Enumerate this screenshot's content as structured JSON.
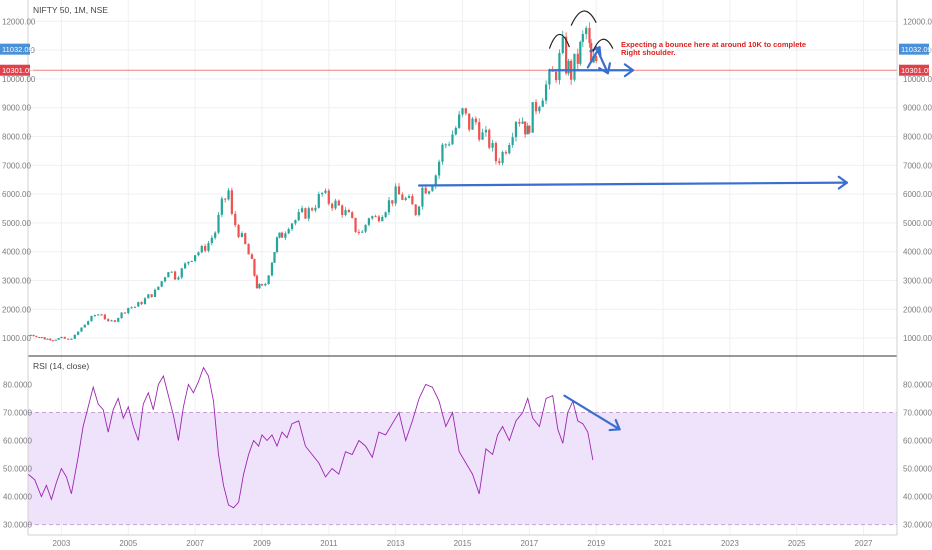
{
  "chart_data": [
    {
      "type": "candlestick",
      "title": "NIFTY 50, 1M, NSE",
      "ylim": [
        450,
        12600
      ],
      "xlim": [
        2002.0,
        2028.0
      ],
      "x_ticks": [
        "2003",
        "2005",
        "2007",
        "2009",
        "2011",
        "2013",
        "2015",
        "2017",
        "2019",
        "2021",
        "2023",
        "2025",
        "2027"
      ],
      "y_ticks": [
        "1000.00",
        "2000.00",
        "3000.00",
        "4000.00",
        "5000.00",
        "6000.00",
        "7000.00",
        "8000.00",
        "9000.00",
        "10000.00",
        "11000.00",
        "12000.00"
      ],
      "colors": {
        "up": "#26a69a",
        "down": "#ef5350",
        "support_line": "#f08080",
        "arrow": "#3a6fd0",
        "price_badge": "#4a90d9",
        "support_badge": "#e0404a"
      },
      "price_badges": [
        {
          "label": "11032.09",
          "value": 11032.09,
          "color": "#4a90d9"
        },
        {
          "label": "10301.05",
          "value": 10301.05,
          "color": "#e0404a"
        }
      ],
      "horizontal_line": {
        "value": 10301.05
      },
      "annotation": {
        "line1": "Expecting a bounce here at around 10K to complete",
        "line2": "Right shoulder."
      },
      "closes": [
        [
          2002.0,
          1130
        ],
        [
          2002.25,
          1080
        ],
        [
          2002.5,
          980
        ],
        [
          2002.75,
          960
        ],
        [
          2003.0,
          1000
        ],
        [
          2003.2,
          950
        ],
        [
          2003.4,
          1080
        ],
        [
          2003.6,
          1350
        ],
        [
          2003.8,
          1600
        ],
        [
          2004.0,
          1800
        ],
        [
          2004.2,
          1860
        ],
        [
          2004.4,
          1530
        ],
        [
          2004.6,
          1640
        ],
        [
          2004.8,
          1850
        ],
        [
          2005.0,
          2060
        ],
        [
          2005.2,
          2100
        ],
        [
          2005.4,
          2250
        ],
        [
          2005.6,
          2450
        ],
        [
          2005.8,
          2600
        ],
        [
          2006.0,
          2980
        ],
        [
          2006.2,
          3400
        ],
        [
          2006.4,
          3150
        ],
        [
          2006.6,
          3350
        ],
        [
          2006.8,
          3700
        ],
        [
          2007.0,
          3950
        ],
        [
          2007.2,
          4050
        ],
        [
          2007.4,
          4300
        ],
        [
          2007.6,
          4700
        ],
        [
          2007.8,
          5600
        ],
        [
          2008.0,
          6100
        ],
        [
          2008.1,
          5200
        ],
        [
          2008.3,
          4700
        ],
        [
          2008.5,
          4200
        ],
        [
          2008.7,
          3600
        ],
        [
          2008.85,
          2800
        ],
        [
          2009.0,
          2750
        ],
        [
          2009.1,
          2900
        ],
        [
          2009.3,
          3700
        ],
        [
          2009.45,
          4400
        ],
        [
          2009.6,
          4600
        ],
        [
          2009.8,
          5000
        ],
        [
          2010.0,
          5100
        ],
        [
          2010.2,
          5300
        ],
        [
          2010.4,
          5400
        ],
        [
          2010.6,
          5700
        ],
        [
          2010.8,
          6000
        ],
        [
          2011.0,
          5750
        ],
        [
          2011.2,
          5650
        ],
        [
          2011.4,
          5450
        ],
        [
          2011.6,
          5200
        ],
        [
          2011.8,
          4800
        ],
        [
          2012.0,
          4650
        ],
        [
          2012.2,
          5250
        ],
        [
          2012.4,
          5150
        ],
        [
          2012.6,
          5450
        ],
        [
          2012.8,
          5700
        ],
        [
          2013.0,
          6000
        ],
        [
          2013.2,
          5900
        ],
        [
          2013.4,
          5700
        ],
        [
          2013.6,
          5400
        ],
        [
          2013.8,
          6200
        ],
        [
          2014.0,
          6300
        ],
        [
          2014.2,
          6700
        ],
        [
          2014.4,
          7600
        ],
        [
          2014.6,
          7900
        ],
        [
          2014.8,
          8300
        ],
        [
          2015.0,
          8800
        ],
        [
          2015.2,
          8400
        ],
        [
          2015.4,
          8500
        ],
        [
          2015.6,
          8000
        ],
        [
          2015.8,
          7800
        ],
        [
          2016.0,
          7200
        ],
        [
          2016.2,
          7400
        ],
        [
          2016.4,
          8000
        ],
        [
          2016.6,
          8700
        ],
        [
          2016.8,
          8600
        ],
        [
          2016.95,
          8100
        ],
        [
          2017.0,
          8500
        ],
        [
          2017.2,
          9100
        ],
        [
          2017.4,
          9600
        ],
        [
          2017.6,
          9900
        ],
        [
          2017.8,
          10300
        ],
        [
          2018.0,
          11000
        ],
        [
          2018.1,
          10500
        ],
        [
          2018.25,
          10200
        ],
        [
          2018.45,
          10700
        ],
        [
          2018.6,
          11350
        ],
        [
          2018.7,
          11700
        ],
        [
          2018.8,
          11000
        ],
        [
          2018.85,
          10400
        ],
        [
          2019.0,
          10650
        ]
      ],
      "arrows": [
        {
          "from": [
            2013.7,
            6300
          ],
          "to": [
            2026.5,
            6400
          ]
        },
        {
          "from": [
            2017.6,
            10300
          ],
          "to": [
            2020.1,
            10300
          ]
        },
        {
          "from": [
            2018.75,
            10400
          ],
          "to": [
            2019.1,
            11100
          ]
        },
        {
          "from": [
            2019.0,
            11100
          ],
          "to": [
            2019.35,
            10200
          ]
        }
      ],
      "arcs": [
        {
          "from": [
            2017.6,
            11050
          ],
          "to": [
            2018.2,
            11100
          ],
          "peak": 11650
        },
        {
          "from": [
            2018.25,
            11850
          ],
          "to": [
            2019.0,
            11950
          ],
          "peak": 12450
        },
        {
          "from": [
            2018.9,
            10950
          ],
          "to": [
            2019.5,
            11050
          ],
          "peak": 11450
        }
      ]
    },
    {
      "type": "line",
      "title": "RSI (14, close)",
      "ylim": [
        27,
        88
      ],
      "y_ticks": [
        "30.0000",
        "40.0000",
        "50.0000",
        "60.0000",
        "70.0000",
        "80.0000"
      ],
      "band": [
        30,
        70
      ],
      "colors": {
        "line": "#9c27b0",
        "band": "#efe2fb",
        "band_border": "#c8a2d6"
      },
      "x": [
        2002.0,
        2002.2,
        2002.4,
        2002.55,
        2002.7,
        2002.85,
        2003.0,
        2003.15,
        2003.3,
        2003.5,
        2003.65,
        2003.8,
        2003.95,
        2004.1,
        2004.25,
        2004.4,
        2004.55,
        2004.7,
        2004.85,
        2005.0,
        2005.15,
        2005.3,
        2005.45,
        2005.6,
        2005.75,
        2005.9,
        2006.05,
        2006.2,
        2006.35,
        2006.5,
        2006.65,
        2006.8,
        2006.95,
        2007.1,
        2007.25,
        2007.4,
        2007.55,
        2007.7,
        2007.85,
        2008.0,
        2008.15,
        2008.3,
        2008.45,
        2008.6,
        2008.75,
        2008.9,
        2009.0,
        2009.15,
        2009.3,
        2009.45,
        2009.6,
        2009.75,
        2009.9,
        2010.1,
        2010.3,
        2010.5,
        2010.7,
        2010.9,
        2011.1,
        2011.3,
        2011.5,
        2011.7,
        2011.9,
        2012.1,
        2012.3,
        2012.5,
        2012.7,
        2012.9,
        2013.1,
        2013.3,
        2013.5,
        2013.7,
        2013.9,
        2014.1,
        2014.3,
        2014.5,
        2014.7,
        2014.9,
        2015.1,
        2015.3,
        2015.5,
        2015.7,
        2015.9,
        2016.05,
        2016.2,
        2016.4,
        2016.6,
        2016.8,
        2016.95,
        2017.1,
        2017.3,
        2017.5,
        2017.7,
        2017.85,
        2018.0,
        2018.15,
        2018.3,
        2018.45,
        2018.6,
        2018.75,
        2018.9
      ],
      "values": [
        48,
        46,
        40,
        44,
        39,
        45,
        50,
        47,
        41,
        54,
        65,
        72,
        79,
        73,
        71,
        63,
        71,
        75,
        68,
        72,
        65,
        60,
        73,
        77,
        71,
        80,
        83,
        76,
        69,
        60,
        72,
        80,
        77,
        81,
        86,
        83,
        74,
        55,
        44,
        37,
        36,
        38,
        48,
        55,
        60,
        58,
        62,
        60,
        62,
        58,
        63,
        61,
        66,
        67,
        58,
        55,
        52,
        47,
        50,
        48,
        56,
        55,
        60,
        58,
        54,
        63,
        62,
        66,
        70,
        60,
        67,
        75,
        80,
        79,
        74,
        65,
        70,
        56,
        52,
        48,
        41,
        57,
        55,
        62,
        65,
        60,
        67,
        70,
        75,
        68,
        65,
        75,
        76,
        64,
        59,
        70,
        74,
        67,
        66,
        63,
        53
      ]
    }
  ],
  "axis_labels": {
    "x": [
      "2003",
      "2005",
      "2007",
      "2009",
      "2011",
      "2013",
      "2015",
      "2017",
      "2019",
      "2021",
      "2023",
      "2025",
      "2027"
    ],
    "price": [
      "12000.00",
      "11000.00",
      "10000.00",
      "9000.00",
      "8000.00",
      "7000.00",
      "6000.00",
      "5000.00",
      "4000.00",
      "3000.00",
      "2000.00",
      "1000.00"
    ],
    "rsi": [
      "80.0000",
      "70.0000",
      "60.0000",
      "50.0000",
      "40.0000",
      "30.0000"
    ]
  }
}
